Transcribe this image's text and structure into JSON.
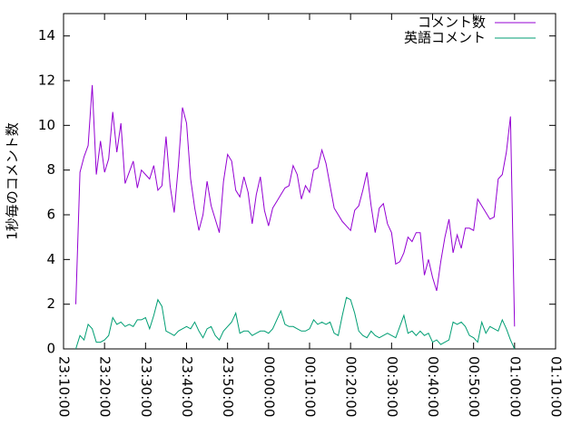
{
  "chart_data": {
    "type": "line",
    "ylabel": "1秒毎のコメント数",
    "x": [
      "23:13:00",
      "23:14:00",
      "23:15:00",
      "23:16:00",
      "23:17:00",
      "23:18:00",
      "23:19:00",
      "23:20:00",
      "23:21:00",
      "23:22:00",
      "23:23:00",
      "23:24:00",
      "23:25:00",
      "23:26:00",
      "23:27:00",
      "23:28:00",
      "23:29:00",
      "23:30:00",
      "23:31:00",
      "23:32:00",
      "23:33:00",
      "23:34:00",
      "23:35:00",
      "23:36:00",
      "23:37:00",
      "23:38:00",
      "23:39:00",
      "23:40:00",
      "23:41:00",
      "23:42:00",
      "23:43:00",
      "23:44:00",
      "23:45:00",
      "23:46:00",
      "23:47:00",
      "23:48:00",
      "23:49:00",
      "23:50:00",
      "23:51:00",
      "23:52:00",
      "23:53:00",
      "23:54:00",
      "23:55:00",
      "23:56:00",
      "23:57:00",
      "23:58:00",
      "23:59:00",
      "00:00:00",
      "00:01:00",
      "00:02:00",
      "00:03:00",
      "00:04:00",
      "00:05:00",
      "00:06:00",
      "00:07:00",
      "00:08:00",
      "00:09:00",
      "00:10:00",
      "00:11:00",
      "00:12:00",
      "00:13:00",
      "00:14:00",
      "00:15:00",
      "00:16:00",
      "00:17:00",
      "00:18:00",
      "00:19:00",
      "00:20:00",
      "00:21:00",
      "00:22:00",
      "00:23:00",
      "00:24:00",
      "00:25:00",
      "00:26:00",
      "00:27:00",
      "00:28:00",
      "00:29:00",
      "00:30:00",
      "00:31:00",
      "00:32:00",
      "00:33:00",
      "00:34:00",
      "00:35:00",
      "00:36:00",
      "00:37:00",
      "00:38:00",
      "00:39:00",
      "00:40:00",
      "00:41:00",
      "00:42:00",
      "00:43:00",
      "00:44:00",
      "00:45:00",
      "00:46:00",
      "00:47:00",
      "00:48:00",
      "00:49:00",
      "00:50:00",
      "00:51:00",
      "00:52:00",
      "00:53:00",
      "00:54:00",
      "00:55:00",
      "00:56:00",
      "00:57:00",
      "00:58:00",
      "00:59:00",
      "01:00:00"
    ],
    "series": [
      {
        "name": "コメント数",
        "color": "#9400d3",
        "values": [
          2.0,
          7.9,
          8.6,
          9.1,
          11.8,
          7.8,
          9.3,
          7.9,
          8.5,
          10.6,
          8.8,
          10.1,
          7.4,
          7.9,
          8.4,
          7.2,
          8.0,
          7.8,
          7.6,
          8.2,
          7.1,
          7.3,
          9.5,
          7.3,
          6.1,
          8.2,
          10.8,
          10.1,
          7.6,
          6.3,
          5.3,
          6.0,
          7.5,
          6.4,
          5.8,
          5.2,
          7.5,
          8.7,
          8.4,
          7.1,
          6.8,
          7.7,
          7.0,
          5.6,
          6.9,
          7.7,
          6.2,
          5.5,
          6.3,
          6.6,
          6.9,
          7.2,
          7.3,
          8.2,
          7.8,
          6.7,
          7.3,
          7.0,
          8.0,
          8.1,
          8.9,
          8.3,
          7.3,
          6.3,
          6.0,
          5.7,
          5.5,
          5.3,
          6.2,
          6.4,
          7.1,
          7.9,
          6.4,
          5.2,
          6.3,
          6.5,
          5.6,
          5.2,
          3.8,
          3.9,
          4.3,
          5.0,
          4.8,
          5.2,
          5.2,
          3.3,
          4.0,
          3.2,
          2.6,
          3.9,
          5.0,
          5.8,
          4.3,
          5.1,
          4.5,
          5.4,
          5.4,
          5.3,
          6.7,
          6.4,
          6.1,
          5.8,
          5.9,
          7.6,
          7.8,
          8.8,
          10.4,
          1.0
        ]
      },
      {
        "name": "英語コメント",
        "color": "#009e73",
        "values": [
          0.0,
          0.6,
          0.4,
          1.1,
          0.9,
          0.3,
          0.3,
          0.4,
          0.6,
          1.4,
          1.1,
          1.2,
          1.0,
          1.1,
          1.0,
          1.3,
          1.3,
          1.4,
          0.9,
          1.5,
          2.2,
          1.9,
          0.8,
          0.7,
          0.6,
          0.8,
          0.9,
          1.0,
          0.9,
          1.2,
          0.8,
          0.5,
          0.9,
          1.0,
          0.6,
          0.4,
          0.8,
          1.0,
          1.2,
          1.6,
          0.7,
          0.8,
          0.8,
          0.6,
          0.7,
          0.8,
          0.8,
          0.7,
          0.9,
          1.3,
          1.7,
          1.1,
          1.0,
          1.0,
          0.9,
          0.8,
          0.8,
          0.9,
          1.3,
          1.1,
          1.2,
          1.1,
          1.2,
          0.7,
          0.6,
          1.5,
          2.3,
          2.2,
          1.6,
          0.8,
          0.6,
          0.5,
          0.8,
          0.6,
          0.5,
          0.6,
          0.7,
          0.6,
          0.5,
          1.0,
          1.5,
          0.7,
          0.8,
          0.6,
          0.8,
          0.6,
          0.7,
          0.3,
          0.4,
          0.2,
          0.3,
          0.4,
          1.2,
          1.1,
          1.2,
          1.0,
          0.6,
          0.5,
          0.3,
          1.2,
          0.7,
          1.0,
          0.9,
          0.8,
          1.3,
          0.9,
          0.4,
          0.0
        ]
      }
    ],
    "xlim": [
      "23:10:00",
      "01:10:00"
    ],
    "xticks": [
      "23:10:00",
      "23:20:00",
      "23:30:00",
      "23:40:00",
      "23:50:00",
      "00:00:00",
      "00:10:00",
      "00:20:00",
      "00:30:00",
      "00:40:00",
      "00:50:00",
      "01:00:00",
      "01:10:00"
    ],
    "ylim": [
      0,
      15
    ],
    "yticks": [
      0,
      2,
      4,
      6,
      8,
      10,
      12,
      14
    ],
    "legend": "top-right"
  }
}
